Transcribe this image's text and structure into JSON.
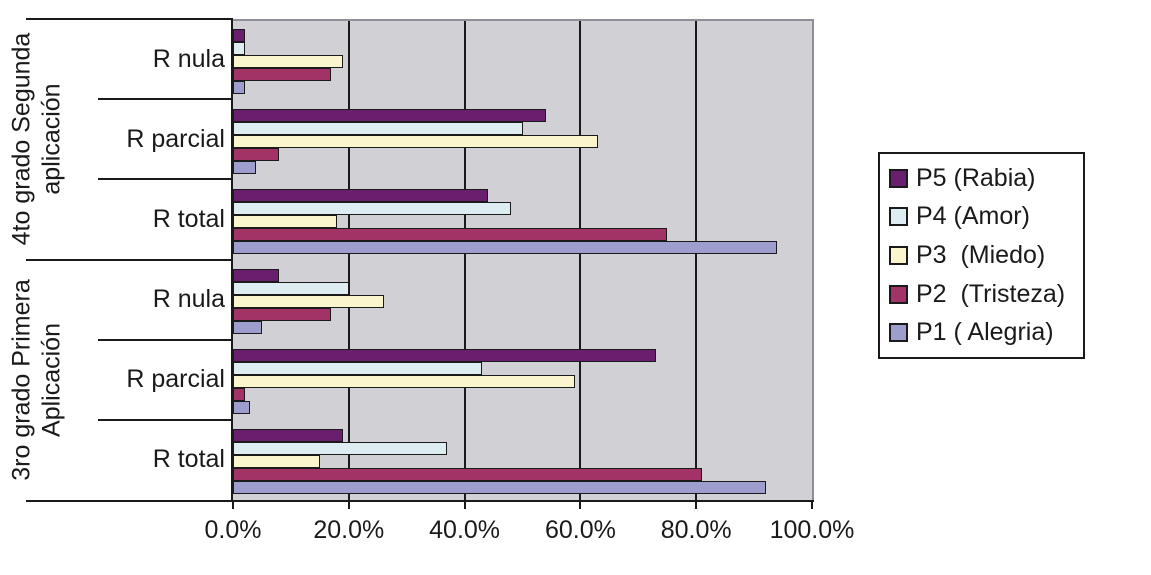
{
  "chart_data": {
    "type": "bar",
    "orientation": "horizontal",
    "title": "",
    "plot_bg_color": "#D0D0D5",
    "gridline_color": "#1a1a1a",
    "axis_color": "#1a1a1a",
    "plot_border_color": "#8F8F98",
    "text_color": "#1a1a1a",
    "x_axis": {
      "min": 0,
      "max": 100,
      "tick_labels": [
        "0.0%",
        "20.0%",
        "40.0%",
        "60.0%",
        "80.0%",
        "100.0%"
      ],
      "tick_values": [
        0,
        20,
        40,
        60,
        80,
        100
      ],
      "gridline_values": [
        20,
        40,
        60,
        80
      ]
    },
    "series": [
      {
        "id": "P5",
        "label": "P5 (Rabia)",
        "color": "#6A1E6E"
      },
      {
        "id": "P4",
        "label": "P4 (Amor)",
        "color": "#DDEDF2"
      },
      {
        "id": "P3",
        "label": "P3  (Miedo)",
        "color": "#FBF5CE"
      },
      {
        "id": "P2",
        "label": "P2  (Tristeza)",
        "color": "#A23366"
      },
      {
        "id": "P1",
        "label": "P1 ( Alegria)",
        "color": "#9E9ECE"
      }
    ],
    "groups": [
      {
        "label_lines": [
          "4to grado Segunda",
          "aplicación"
        ],
        "categories": [
          {
            "label": "R nula",
            "values": [
              2,
              2,
              19,
              17,
              2
            ]
          },
          {
            "label": "R parcial",
            "values": [
              54,
              50,
              63,
              8,
              4
            ]
          },
          {
            "label": "R total",
            "values": [
              44,
              48,
              18,
              75,
              94
            ]
          }
        ]
      },
      {
        "label_lines": [
          "3ro grado  Primera",
          "Aplicación"
        ],
        "categories": [
          {
            "label": "R nula",
            "values": [
              8,
              20,
              26,
              17,
              5
            ]
          },
          {
            "label": "R parcial",
            "values": [
              73,
              43,
              59,
              2,
              3
            ]
          },
          {
            "label": "R total",
            "values": [
              19,
              37,
              15,
              81,
              92
            ]
          }
        ]
      }
    ],
    "legend_position": "right"
  }
}
